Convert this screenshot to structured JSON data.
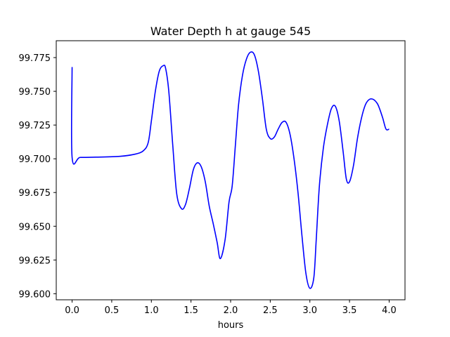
{
  "chart_data": {
    "type": "line",
    "title": "Water Depth h at gauge 545",
    "xlabel": "hours",
    "ylabel": "",
    "xlim": [
      -0.2,
      4.2
    ],
    "ylim": [
      99.5955,
      99.7875
    ],
    "grid": false,
    "legend": "none",
    "xticks": [
      0.0,
      0.5,
      1.0,
      1.5,
      2.0,
      2.5,
      3.0,
      3.5,
      4.0
    ],
    "xtick_labels": [
      "0.0",
      "0.5",
      "1.0",
      "1.5",
      "2.0",
      "2.5",
      "3.0",
      "3.5",
      "4.0"
    ],
    "yticks": [
      99.6,
      99.625,
      99.65,
      99.675,
      99.7,
      99.725,
      99.75,
      99.775
    ],
    "ytick_labels": [
      "99.600",
      "99.625",
      "99.650",
      "99.675",
      "99.700",
      "99.725",
      "99.750",
      "99.775"
    ],
    "series": [
      {
        "color": "#0000ff",
        "x": [
          0.0,
          0.0,
          0.1,
          0.3,
          0.6,
          0.8,
          0.9,
          0.96,
          1.0,
          1.05,
          1.1,
          1.15,
          1.18,
          1.22,
          1.27,
          1.32,
          1.38,
          1.43,
          1.48,
          1.53,
          1.58,
          1.63,
          1.68,
          1.73,
          1.78,
          1.83,
          1.87,
          1.93,
          1.98,
          2.02,
          2.06,
          2.1,
          2.15,
          2.2,
          2.25,
          2.3,
          2.35,
          2.4,
          2.45,
          2.5,
          2.55,
          2.6,
          2.65,
          2.7,
          2.75,
          2.8,
          2.85,
          2.9,
          2.95,
          3.0,
          3.05,
          3.08,
          3.12,
          3.17,
          3.22,
          3.27,
          3.32,
          3.37,
          3.42,
          3.46,
          3.5,
          3.55,
          3.6,
          3.65,
          3.7,
          3.75,
          3.8,
          3.85,
          3.88,
          3.92,
          3.96,
          4.0
        ],
        "y": [
          99.768,
          99.701,
          99.701,
          99.7012,
          99.7018,
          99.7035,
          99.706,
          99.712,
          99.728,
          99.75,
          99.765,
          99.769,
          99.767,
          99.75,
          99.71,
          99.674,
          99.663,
          99.666,
          99.678,
          99.692,
          99.697,
          99.694,
          99.683,
          99.665,
          99.652,
          99.638,
          99.626,
          99.64,
          99.668,
          99.68,
          99.71,
          99.74,
          99.762,
          99.774,
          99.779,
          99.777,
          99.765,
          99.745,
          99.722,
          99.715,
          99.716,
          99.722,
          99.727,
          99.727,
          99.718,
          99.7,
          99.675,
          99.643,
          99.615,
          99.604,
          99.612,
          99.64,
          99.68,
          99.708,
          99.725,
          99.737,
          99.739,
          99.728,
          99.705,
          99.685,
          99.683,
          99.695,
          99.715,
          99.73,
          99.74,
          99.744,
          99.744,
          99.741,
          99.737,
          99.73,
          99.722,
          99.722
        ]
      }
    ]
  }
}
